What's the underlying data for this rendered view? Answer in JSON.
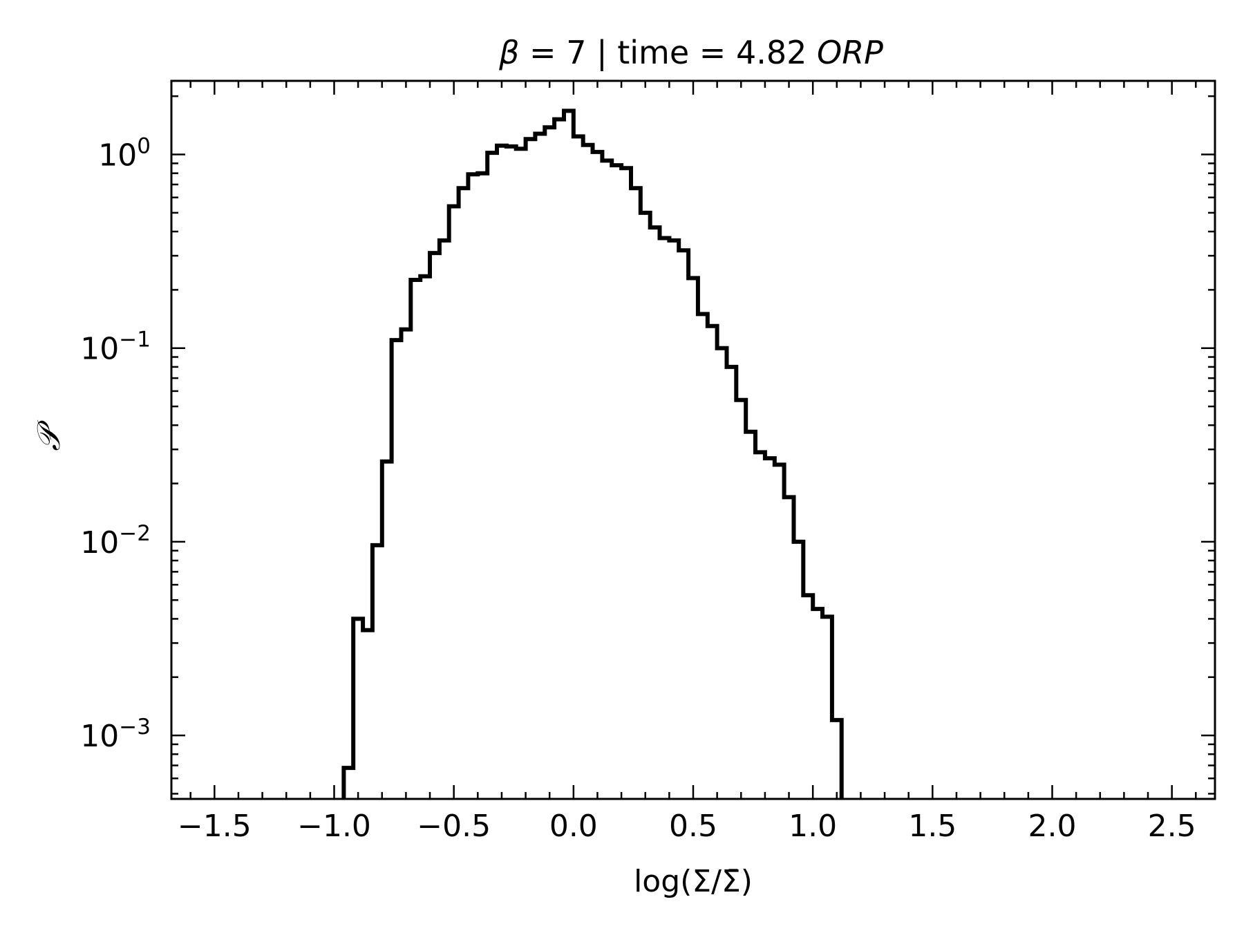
{
  "chart_data": {
    "type": "bar",
    "title": {
      "beta_symbol": "β",
      "beta_rest": " = 7 | time = 4.82 ",
      "unit": "ORP"
    },
    "xlabel": "log(Σ/Σ̄)",
    "ylabel": "𝒫",
    "x_scale": "linear",
    "y_scale": "log",
    "xlim": [
      -1.68,
      2.68
    ],
    "ylim": [
      0.00047,
      2.4
    ],
    "x_ticks": [
      {
        "value": -1.5,
        "label": "−1.5"
      },
      {
        "value": -1.0,
        "label": "−1.0"
      },
      {
        "value": -0.5,
        "label": "−0.5"
      },
      {
        "value": 0.0,
        "label": "0.0"
      },
      {
        "value": 0.5,
        "label": "0.5"
      },
      {
        "value": 1.0,
        "label": "1.0"
      },
      {
        "value": 1.5,
        "label": "1.5"
      },
      {
        "value": 2.0,
        "label": "2.0"
      },
      {
        "value": 2.5,
        "label": "2.5"
      }
    ],
    "y_ticks": [
      {
        "value": 1,
        "base": "10",
        "exp": "0"
      },
      {
        "value": 0.1,
        "base": "10",
        "exp": "−1"
      },
      {
        "value": 0.01,
        "base": "10",
        "exp": "−2"
      },
      {
        "value": 0.001,
        "base": "10",
        "exp": "−3"
      }
    ],
    "series": [
      {
        "style": "step",
        "color": "#000000",
        "bin_edges": [
          -0.96,
          -0.92,
          -0.88,
          -0.84,
          -0.8,
          -0.76,
          -0.72,
          -0.68,
          -0.64,
          -0.6,
          -0.56,
          -0.52,
          -0.48,
          -0.44,
          -0.4,
          -0.36,
          -0.32,
          -0.28,
          -0.24,
          -0.2,
          -0.16,
          -0.12,
          -0.08,
          -0.04,
          0.0,
          0.04,
          0.08,
          0.12,
          0.16,
          0.2,
          0.24,
          0.28,
          0.32,
          0.36,
          0.4,
          0.44,
          0.48,
          0.52,
          0.56,
          0.6,
          0.64,
          0.68,
          0.72,
          0.76,
          0.8,
          0.84,
          0.88,
          0.92,
          0.96,
          1.0,
          1.04,
          1.08,
          1.12
        ],
        "values": [
          0.00068,
          0.004,
          0.0035,
          0.0096,
          0.026,
          0.11,
          0.125,
          0.225,
          0.235,
          0.31,
          0.36,
          0.54,
          0.67,
          0.79,
          0.8,
          1.02,
          1.11,
          1.1,
          1.07,
          1.2,
          1.28,
          1.38,
          1.52,
          1.68,
          1.24,
          1.12,
          1.03,
          0.93,
          0.88,
          0.85,
          0.67,
          0.5,
          0.42,
          0.37,
          0.36,
          0.32,
          0.23,
          0.15,
          0.13,
          0.1,
          0.08,
          0.054,
          0.037,
          0.029,
          0.027,
          0.025,
          0.017,
          0.01,
          0.0053,
          0.0045,
          0.0041,
          0.0012
        ]
      }
    ],
    "grid": false,
    "legend": "none"
  }
}
